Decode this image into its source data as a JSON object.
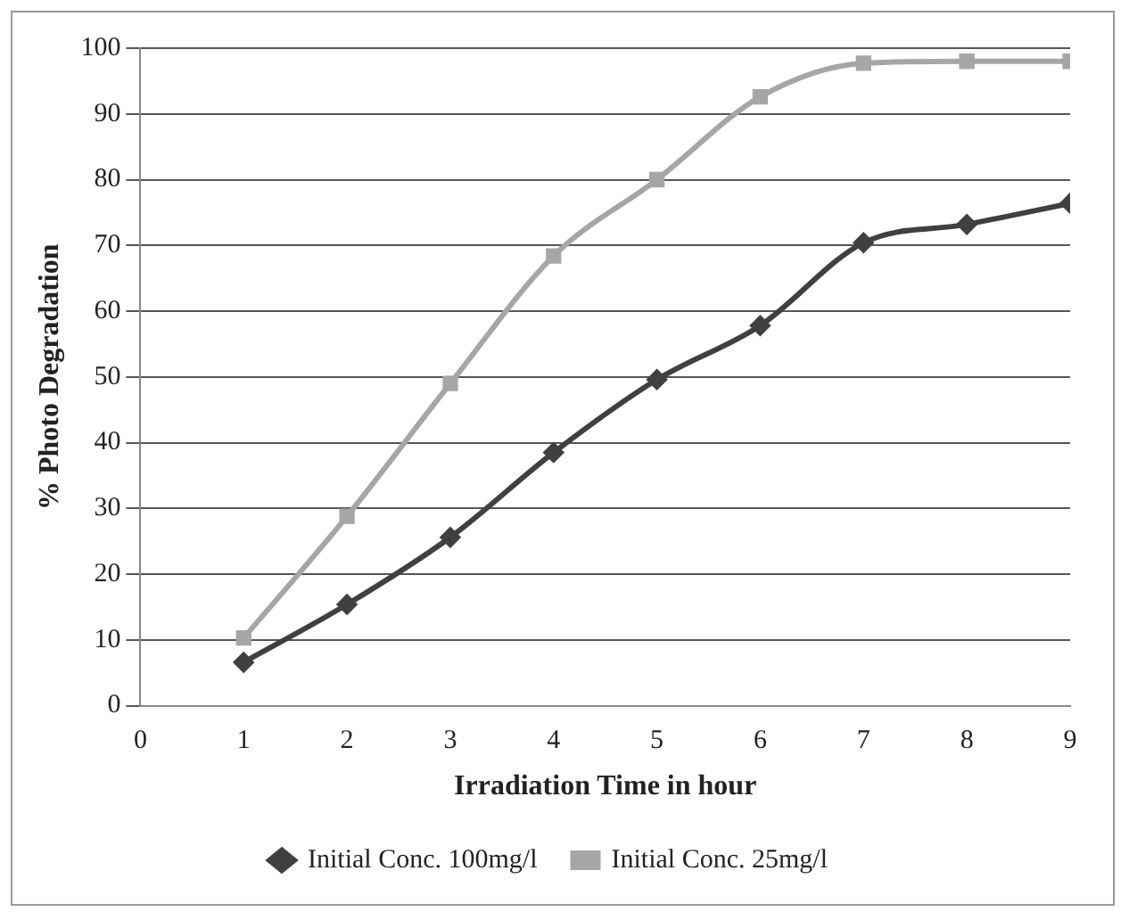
{
  "chart_data": {
    "type": "line",
    "xlabel": "Irradiation Time in hour",
    "ylabel": "% Photo Degradation",
    "x": [
      1,
      2,
      3,
      4,
      5,
      6,
      7,
      8,
      9
    ],
    "xlim": [
      0,
      9
    ],
    "xticks": [
      0,
      1,
      2,
      3,
      4,
      5,
      6,
      7,
      8,
      9
    ],
    "ylim": [
      0,
      100
    ],
    "yticks": [
      0,
      10,
      20,
      30,
      40,
      50,
      60,
      70,
      80,
      90,
      100
    ],
    "grid": "y",
    "legend": "bottom",
    "series": [
      {
        "name": "Initial Conc. 100mg/l",
        "color": "#404040",
        "marker": "diamond",
        "values": [
          6.6,
          15.4,
          25.6,
          38.5,
          49.6,
          57.8,
          70.4,
          73.2,
          76.4
        ]
      },
      {
        "name": "Initial Conc. 25mg/l",
        "color": "#a6a6a6",
        "marker": "square",
        "values": [
          10.3,
          28.8,
          49,
          68.4,
          80,
          92.6,
          97.7,
          98,
          98
        ]
      }
    ]
  }
}
